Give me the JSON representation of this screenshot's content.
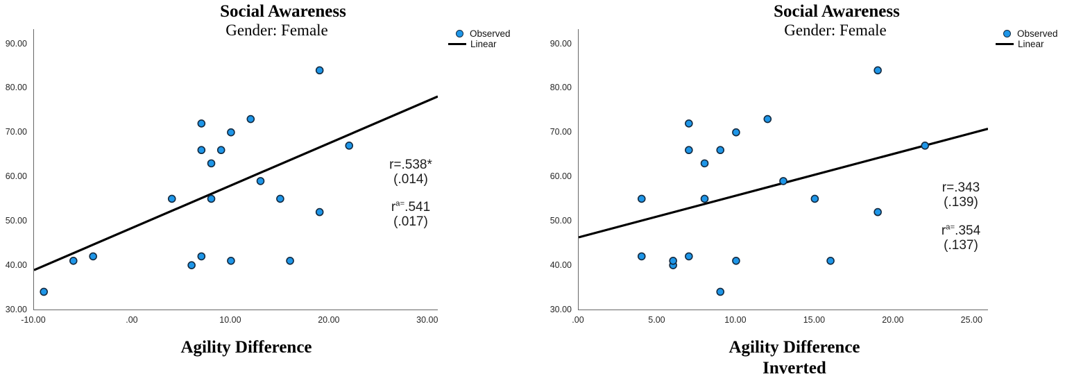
{
  "chart_data": [
    {
      "type": "scatter",
      "title": "Social Awareness",
      "subtitle": "Gender: Female",
      "xlabel_line1": "Agility Difference",
      "ylabel": "",
      "xlim": [
        -10,
        31
      ],
      "ylim": [
        30,
        93.3
      ],
      "grid": false,
      "legend_position": "top-right",
      "legend": {
        "observed": "Observed",
        "linear": "Linear"
      },
      "x_ticks": {
        "values": [
          -10,
          0,
          10,
          20,
          30
        ],
        "labels": [
          "-10.00",
          ".00",
          "10.00",
          "20.00",
          "30.00"
        ]
      },
      "y_ticks": {
        "values": [
          30,
          40,
          50,
          60,
          70,
          80,
          90
        ],
        "labels": [
          "30.00",
          "40.00",
          "50.00",
          "60.00",
          "70.00",
          "80.00",
          "90.00"
        ]
      },
      "points": [
        [
          -9,
          34
        ],
        [
          -6,
          41
        ],
        [
          -4,
          42
        ],
        [
          4,
          55
        ],
        [
          6,
          40
        ],
        [
          7,
          42
        ],
        [
          7,
          66
        ],
        [
          7,
          72
        ],
        [
          8,
          55
        ],
        [
          8,
          63
        ],
        [
          9,
          66
        ],
        [
          10,
          41
        ],
        [
          10,
          70
        ],
        [
          12,
          73
        ],
        [
          13,
          59
        ],
        [
          15,
          55
        ],
        [
          16,
          41
        ],
        [
          19,
          52
        ],
        [
          19,
          84
        ],
        [
          22,
          67
        ]
      ],
      "regression_line": {
        "x1": -10,
        "y1": 38.9,
        "x2": 31,
        "y2": 78.1
      },
      "stats": {
        "r": "r=.538*",
        "r_p": "(.014)",
        "ra_base": "r",
        "ra_sup": "a=",
        "ra_val": ".541",
        "ra_p": "(.017)"
      },
      "colors": {
        "marker_fill": "#1E96E8",
        "marker_stroke": "#13293f",
        "line": "#000000",
        "axis": "#666666"
      }
    },
    {
      "type": "scatter",
      "title": "Social Awareness",
      "subtitle": "Gender: Female",
      "xlabel_line1": "Agility Difference",
      "xlabel_line2": "Inverted",
      "ylabel": "",
      "xlim": [
        0,
        26
      ],
      "ylim": [
        30,
        93.3
      ],
      "grid": false,
      "legend_position": "top-right",
      "legend": {
        "observed": "Observed",
        "linear": "Linear"
      },
      "x_ticks": {
        "values": [
          0,
          5,
          10,
          15,
          20,
          25
        ],
        "labels": [
          ".00",
          "5.00",
          "10.00",
          "15.00",
          "20.00",
          "25.00"
        ]
      },
      "y_ticks": {
        "values": [
          30,
          40,
          50,
          60,
          70,
          80,
          90
        ],
        "labels": [
          "30.00",
          "40.00",
          "50.00",
          "60.00",
          "70.00",
          "80.00",
          "90.00"
        ]
      },
      "points": [
        [
          4,
          42
        ],
        [
          4,
          55
        ],
        [
          6,
          40
        ],
        [
          6,
          41
        ],
        [
          7,
          42
        ],
        [
          7,
          66
        ],
        [
          7,
          72
        ],
        [
          8,
          55
        ],
        [
          8,
          63
        ],
        [
          9,
          34
        ],
        [
          9,
          66
        ],
        [
          10,
          41
        ],
        [
          10,
          70
        ],
        [
          12,
          73
        ],
        [
          13,
          59
        ],
        [
          15,
          55
        ],
        [
          16,
          41
        ],
        [
          19,
          52
        ],
        [
          19,
          84
        ],
        [
          22,
          67
        ]
      ],
      "regression_line": {
        "x1": 0,
        "y1": 46.3,
        "x2": 26,
        "y2": 70.8
      },
      "stats": {
        "r": "r=.343",
        "r_p": "(.139)",
        "ra_base": "r",
        "ra_sup": "a=",
        "ra_val": ".354",
        "ra_p": "(.137)"
      },
      "colors": {
        "marker_fill": "#1E96E8",
        "marker_stroke": "#13293f",
        "line": "#000000",
        "axis": "#666666"
      }
    }
  ]
}
